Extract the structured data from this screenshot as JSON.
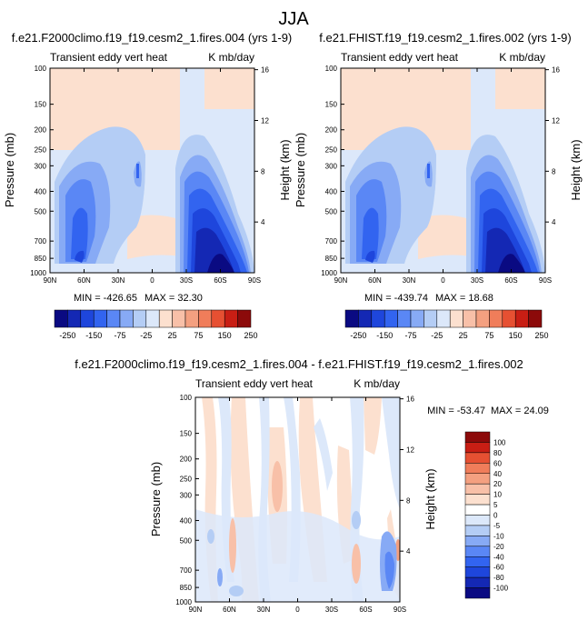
{
  "page_title": "JJA",
  "chart_data": [
    {
      "type": "heatmap",
      "title": "f.e21.F2000climo.f19_f19.cesm2_1.fires.004 (yrs 1-9)",
      "subtitle_left": "Transient eddy vert heat",
      "subtitle_right": "K mb/day",
      "ylabel": "Pressure (mb)",
      "ylabel_right": "Height (km)",
      "x_ticks": [
        "90N",
        "60N",
        "30N",
        "0",
        "30S",
        "60S",
        "90S"
      ],
      "y_ticks": [
        "100",
        "150",
        "200",
        "250",
        "300",
        "400",
        "500",
        "700",
        "850",
        "1000"
      ],
      "y_ticks_right": [
        "16",
        "12",
        "8",
        "4"
      ],
      "xlim": [
        90,
        -90
      ],
      "ylim": [
        1000,
        100
      ],
      "min_label": "MIN = -426.65",
      "max_label": "MAX = 32.30",
      "colorbar_labels": [
        "-250",
        "-150",
        "-75",
        "-25",
        "25",
        "75",
        "150",
        "250"
      ]
    },
    {
      "type": "heatmap",
      "title": "f.e21.FHIST.f19_f19.cesm2_1.fires.002 (yrs 1-9)",
      "subtitle_left": "Transient eddy vert heat",
      "subtitle_right": "K mb/day",
      "ylabel": "Pressure (mb)",
      "ylabel_right": "Height (km)",
      "x_ticks": [
        "90N",
        "60N",
        "30N",
        "0",
        "30S",
        "60S",
        "90S"
      ],
      "y_ticks": [
        "100",
        "150",
        "200",
        "250",
        "300",
        "400",
        "500",
        "700",
        "850",
        "1000"
      ],
      "y_ticks_right": [
        "16",
        "12",
        "8",
        "4"
      ],
      "xlim": [
        90,
        -90
      ],
      "ylim": [
        1000,
        100
      ],
      "min_label": "MIN = -439.74",
      "max_label": "MAX = 18.68",
      "colorbar_labels": [
        "-250",
        "-150",
        "-75",
        "-25",
        "25",
        "75",
        "150",
        "250"
      ]
    },
    {
      "type": "heatmap",
      "title": "f.e21.F2000climo.f19_f19.cesm2_1.fires.004 - f.e21.FHIST.f19_f19.cesm2_1.fires.002",
      "subtitle_left": "Transient eddy vert heat",
      "subtitle_right": "K mb/day",
      "ylabel": "Pressure (mb)",
      "ylabel_right": "Height (km)",
      "x_ticks": [
        "90N",
        "60N",
        "30N",
        "0",
        "30S",
        "60S",
        "90S"
      ],
      "y_ticks": [
        "100",
        "150",
        "200",
        "250",
        "300",
        "400",
        "500",
        "700",
        "850",
        "1000"
      ],
      "y_ticks_right": [
        "16",
        "12",
        "8",
        "4"
      ],
      "xlim": [
        90,
        -90
      ],
      "ylim": [
        1000,
        100
      ],
      "min_label": "MIN = -53.47",
      "max_label": "MAX =  24.09",
      "colorbar_labels": [
        "100",
        "80",
        "60",
        "40",
        "20",
        "10",
        "5",
        "0",
        "-5",
        "-10",
        "-20",
        "-40",
        "-60",
        "-80",
        "-100"
      ]
    }
  ],
  "colors": {
    "top_colorbar": [
      "#0a0a82",
      "#1428b4",
      "#1e46dc",
      "#3264f0",
      "#5a87f5",
      "#87aaf5",
      "#b4cdf5",
      "#dce8fa",
      "#fce0cf",
      "#f8c0a8",
      "#f4a080",
      "#f07d5a",
      "#e65032",
      "#c81e14",
      "#8c0a0a"
    ],
    "bottom_colorbar": [
      "#8c0a0a",
      "#c81e14",
      "#e65032",
      "#f07d5a",
      "#f4a080",
      "#f8c0a8",
      "#fce0cf",
      "#ffffff",
      "#dce8fa",
      "#b4cdf5",
      "#87aaf5",
      "#5a87f5",
      "#3264f0",
      "#1e46dc",
      "#1428b4",
      "#0a0a82"
    ]
  }
}
